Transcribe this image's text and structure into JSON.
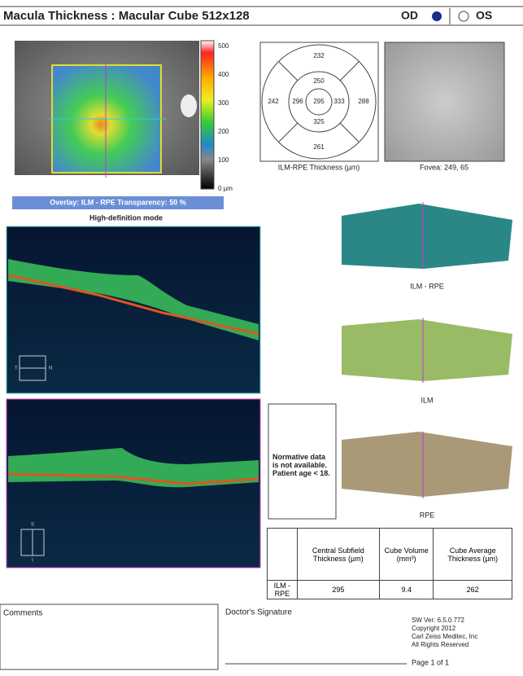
{
  "header": {
    "title": "Macula Thickness : Macular Cube 512x128",
    "od": "OD",
    "os": "OS"
  },
  "thickness_map": {
    "scale_labels": [
      "500",
      "400",
      "300",
      "200",
      "100",
      "0 µm"
    ],
    "overlay": "Overlay: ILM - RPE  Transparency: 50 %",
    "mode": "High-definition mode"
  },
  "scans": {
    "first": {
      "left": "T",
      "right": "N"
    },
    "second": {
      "top": "S",
      "bottom": "I"
    }
  },
  "grid": {
    "outer_top": 232,
    "inner_top": 250,
    "outer_left": 242,
    "inner_left": 296,
    "center": 295,
    "inner_right": 333,
    "outer_right": 288,
    "inner_bottom": 325,
    "outer_bottom": 261,
    "caption": "ILM-RPE Thickness (µm)"
  },
  "fundus": {
    "caption": "Fovea: 249, 65"
  },
  "surfaces": [
    "ILM - RPE",
    "ILM",
    "RPE"
  ],
  "note": "Normative data is not available. Patient age < 18.",
  "table": {
    "headers": [
      "Central Subfield Thickness (µm)",
      "Cube Volume (mm³)",
      "Cube Average Thickness (µm)"
    ],
    "row_label": "ILM - RPE",
    "values": [
      295,
      9.4,
      262
    ]
  },
  "footer": {
    "comments": "Comments",
    "signature": "Doctor's Signature",
    "info": [
      "SW Ver: 6.5.0.772",
      "Copyright 2012",
      "Carl Zeiss Meditec, Inc",
      "All Rights Reserved"
    ],
    "page": "Page 1 of 1"
  }
}
